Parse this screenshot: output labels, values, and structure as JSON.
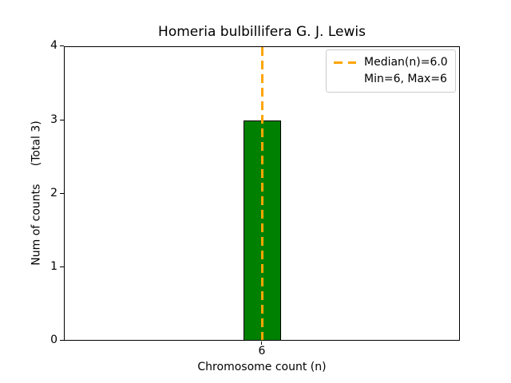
{
  "chart_data": {
    "type": "bar",
    "title": "Homeria bulbillifera G. J. Lewis",
    "xlabel": "Chromosome count (n)",
    "ylabel": "Num of counts     (Total 3)",
    "categories": [
      "6"
    ],
    "values": [
      3
    ],
    "total_counts": 3,
    "xticks": [
      "6"
    ],
    "yticks": [
      "0",
      "1",
      "2",
      "3",
      "4"
    ],
    "ylim": [
      0,
      4
    ],
    "grid": false,
    "bar_color": "#008000",
    "bar_edge_color": "#000000",
    "median_line": {
      "value": 6.0,
      "color": "#FFA500",
      "style": "dashed",
      "orientation": "vertical"
    },
    "legend": {
      "position": "upper right",
      "entries": [
        {
          "label": "Median(n)=6.0",
          "marker": "orange-dashed-line"
        },
        {
          "label": "Min=6, Max=6",
          "marker": "none"
        }
      ]
    }
  }
}
